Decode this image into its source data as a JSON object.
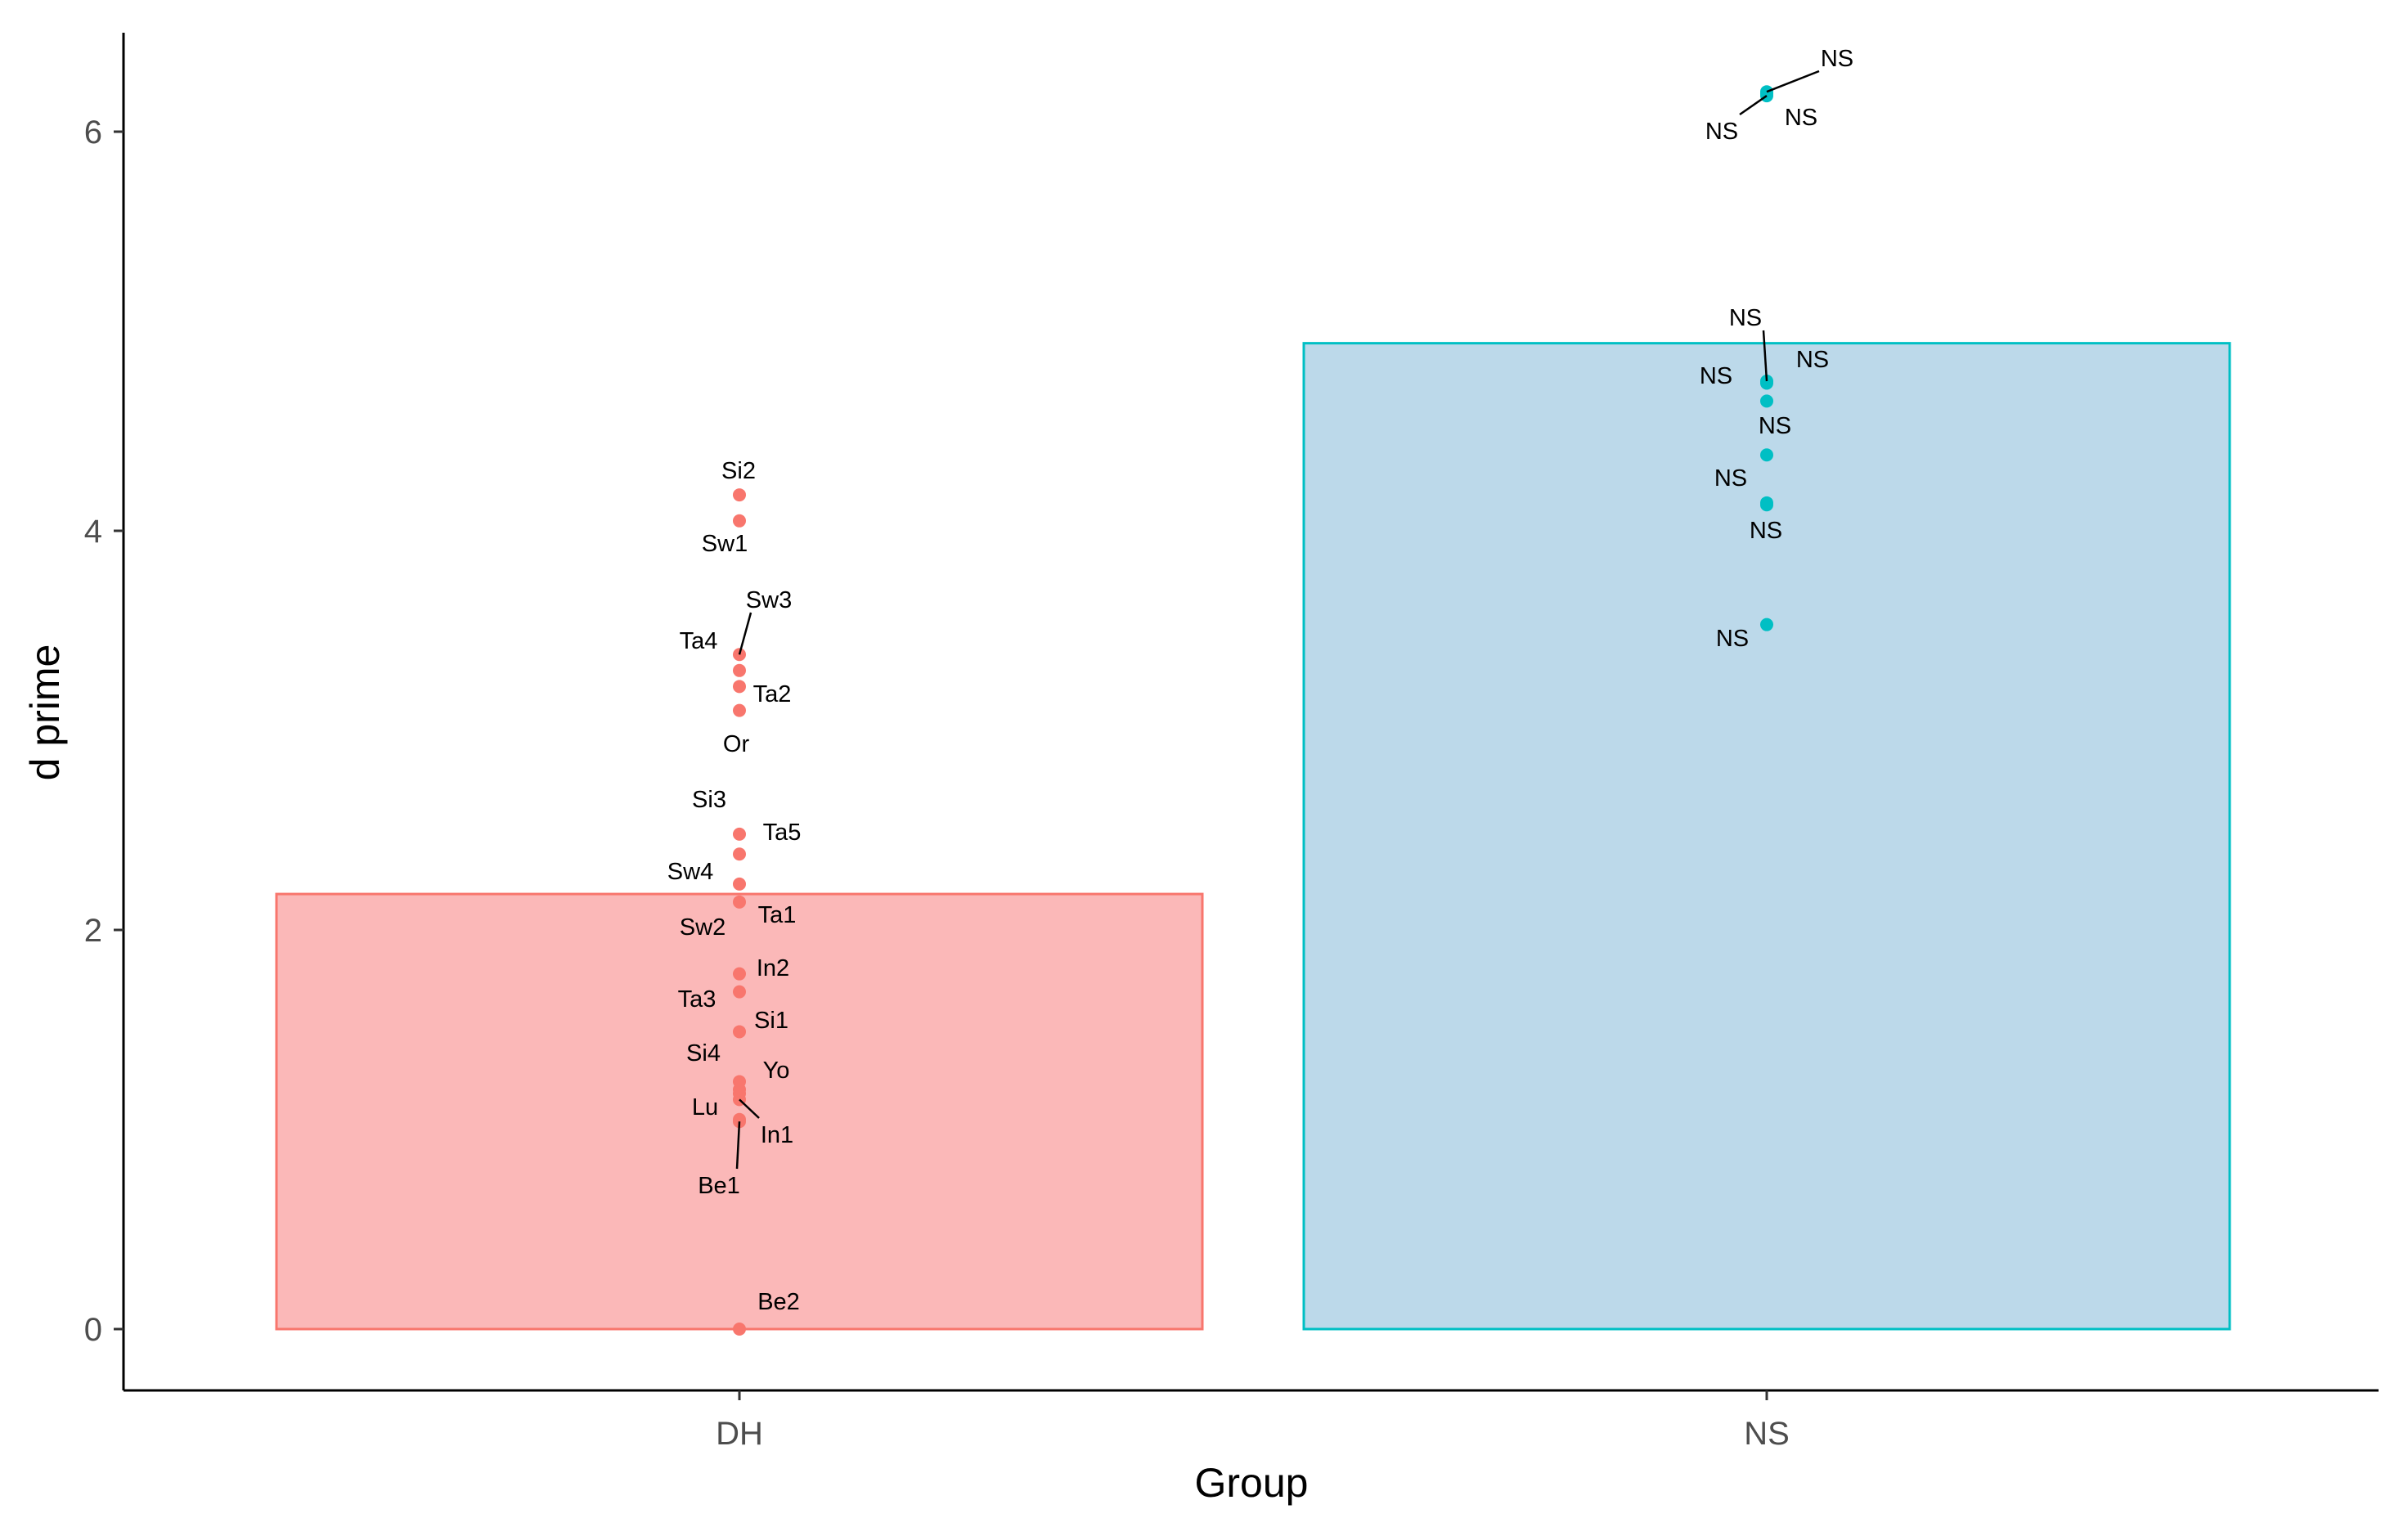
{
  "chart_data": {
    "type": "bar",
    "xlabel": "Group",
    "ylabel": "d prime",
    "ylim": [
      -0.3,
      6.5
    ],
    "yticks": [
      0,
      2,
      4,
      6
    ],
    "categories": [
      "DH",
      "NS"
    ],
    "values": [
      2.18,
      4.94
    ],
    "bar_fills": [
      "#fbb8b8",
      "#bcd9ea"
    ],
    "bar_strokes": [
      "#f8766d",
      "#00bfc4"
    ],
    "point_colors": [
      "#f8766d",
      "#00bfc4"
    ],
    "grid": false,
    "legend": "none",
    "points": [
      {
        "group": "DH",
        "label": "Si2",
        "y": 4.18
      },
      {
        "group": "DH",
        "label": "Sw1",
        "y": 4.05
      },
      {
        "group": "DH",
        "label": "Sw3",
        "y": 3.38
      },
      {
        "group": "DH",
        "label": "Ta4",
        "y": 3.3
      },
      {
        "group": "DH",
        "label": "Ta2",
        "y": 3.22
      },
      {
        "group": "DH",
        "label": "Or",
        "y": 3.1
      },
      {
        "group": "DH",
        "label": "Si3",
        "y": 2.48
      },
      {
        "group": "DH",
        "label": "Ta5",
        "y": 2.38
      },
      {
        "group": "DH",
        "label": "Sw4",
        "y": 2.23
      },
      {
        "group": "DH",
        "label": "Ta1",
        "y": 2.14
      },
      {
        "group": "DH",
        "label": "Sw2",
        "y": 1.78
      },
      {
        "group": "DH",
        "label": "In2",
        "y": 1.69
      },
      {
        "group": "DH",
        "label": "Ta3",
        "y": 1.49
      },
      {
        "group": "DH",
        "label": "Si1",
        "y": 1.24
      },
      {
        "group": "DH",
        "label": "Si4",
        "y": 1.2
      },
      {
        "group": "DH",
        "label": "Yo",
        "y": 1.18
      },
      {
        "group": "DH",
        "label": "Lu",
        "y": 1.05
      },
      {
        "group": "DH",
        "label": "In1",
        "y": 1.15
      },
      {
        "group": "DH",
        "label": "Be1",
        "y": 1.04
      },
      {
        "group": "DH",
        "label": "Be2",
        "y": 0.0
      },
      {
        "group": "NS",
        "label": "NS",
        "y": 6.2
      },
      {
        "group": "NS",
        "label": "NS",
        "y": 6.19
      },
      {
        "group": "NS",
        "label": "NS",
        "y": 6.18
      },
      {
        "group": "NS",
        "label": "NS",
        "y": 4.75
      },
      {
        "group": "NS",
        "label": "NS",
        "y": 4.74
      },
      {
        "group": "NS",
        "label": "NS",
        "y": 4.65
      },
      {
        "group": "NS",
        "label": "NS",
        "y": 4.38
      },
      {
        "group": "NS",
        "label": "NS",
        "y": 4.14
      },
      {
        "group": "NS",
        "label": "NS",
        "y": 4.13
      },
      {
        "group": "NS",
        "label": "NS",
        "y": 3.53
      }
    ]
  }
}
